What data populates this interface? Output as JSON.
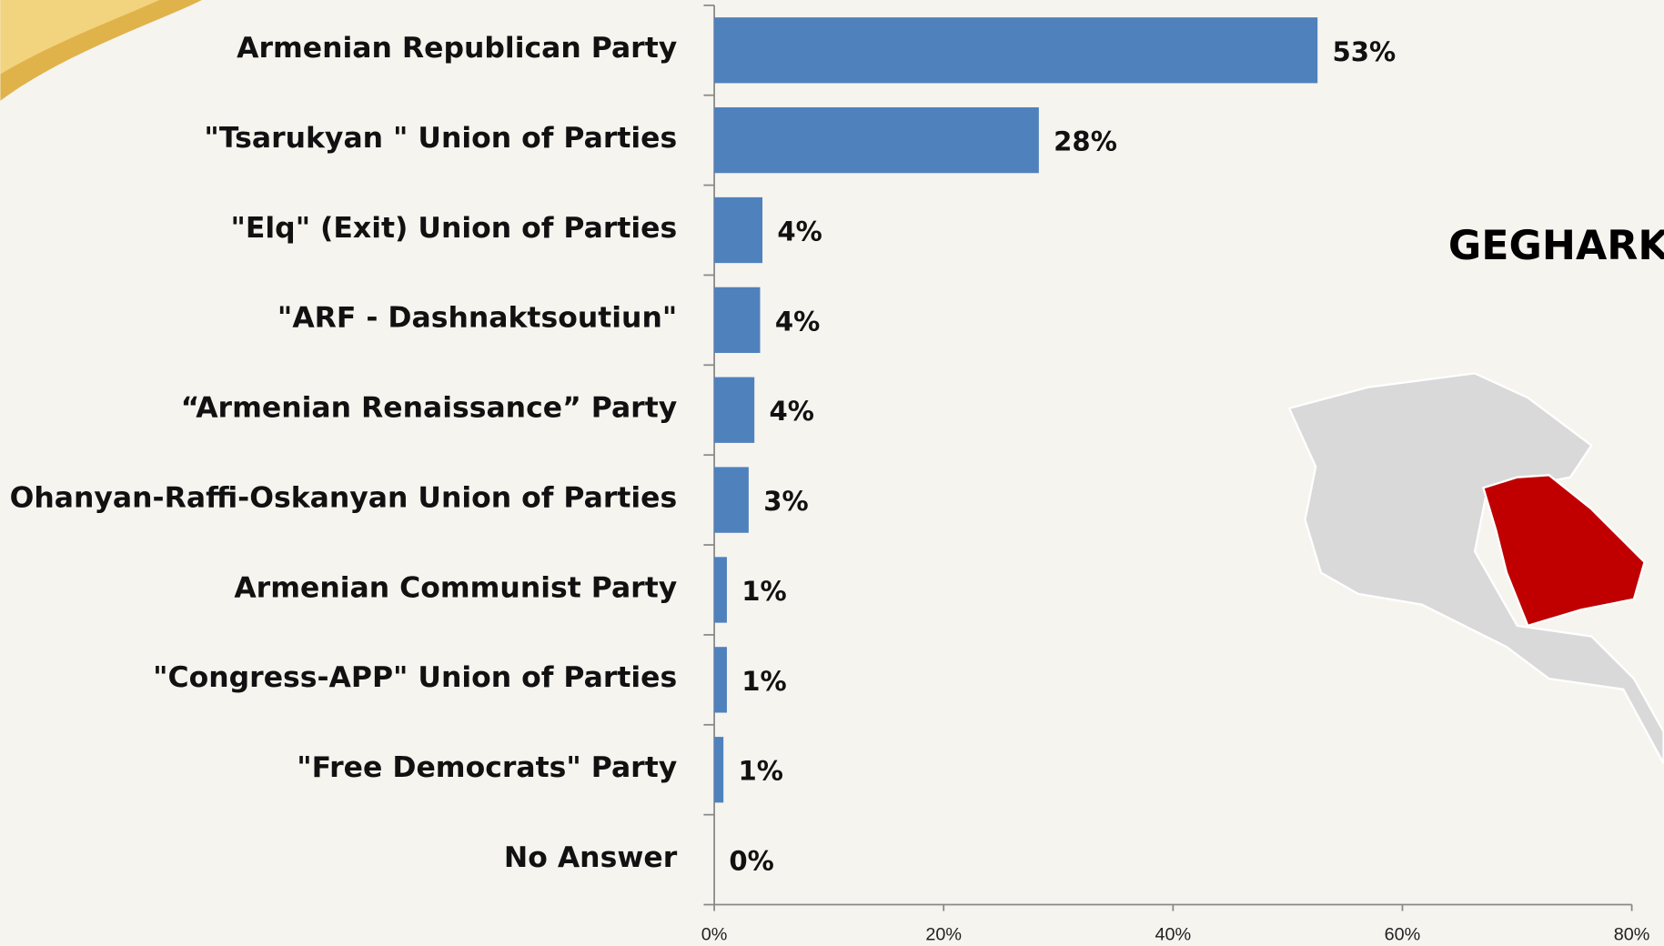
{
  "chart_data": {
    "type": "barh",
    "categories": [
      "Armenian Republican Party",
      "\"Tsarukyan \" Union of Parties",
      "\"Elq\" (Exit)  Union of Parties",
      "\"ARF -  Dashnaktsoutiun\"",
      "“Armenian  Renaissance” Party",
      "Ohanyan-Raffi-Oskanyan Union of Parties",
      "Armenian Communist Party",
      "\"Congress-APP\" Union of Parties",
      "\"Free Democrats\" Party",
      "No Answer"
    ],
    "values": [
      52.6,
      28.3,
      4.2,
      4.0,
      3.5,
      3.0,
      1.1,
      1.1,
      0.8,
      0
    ],
    "value_labels": [
      "53%",
      "28%",
      "4%",
      "4%",
      "4%",
      "3%",
      "1%",
      "1%",
      "1%",
      "0%"
    ],
    "color": "#4f81bd",
    "xlim": [
      0,
      80
    ],
    "xticks": [
      {
        "value": 0,
        "label": "0%"
      },
      {
        "value": 20,
        "label": "20%"
      },
      {
        "value": 40,
        "label": "40%"
      },
      {
        "value": 60,
        "label": "60%"
      },
      {
        "value": 80,
        "label": "80%"
      }
    ],
    "map_label": "GEGHARK"
  }
}
